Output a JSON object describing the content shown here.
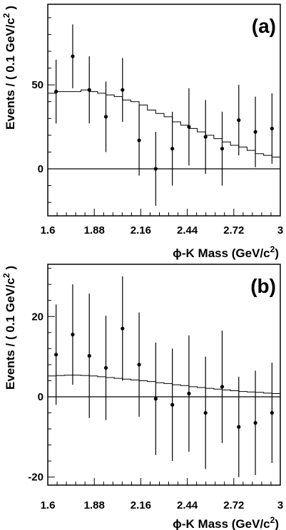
{
  "chart_data": [
    {
      "type": "scatter",
      "panel_label": "(a)",
      "ylabel": "Events / ( 0.1 GeV/c",
      "ylabel_sup": "2",
      "ylabel_close": " )",
      "xlabel": "ϕ-K Mass (GeV/c",
      "xlabel_sup": "2",
      "xlabel_close": ")",
      "xlim": [
        1.6,
        3.0
      ],
      "ylim": [
        -28,
        98
      ],
      "x_ticks": [
        1.6,
        1.88,
        2.16,
        2.44,
        2.72,
        3.0
      ],
      "x_tick_labels": [
        "1.6",
        "1.88",
        "2.16",
        "2.44",
        "2.72",
        "3"
      ],
      "y_ticks": [
        0,
        50
      ],
      "y_tick_labels": [
        "0",
        "50"
      ],
      "zero_line": true,
      "data": {
        "name": "data",
        "x": [
          1.65,
          1.75,
          1.85,
          1.95,
          2.05,
          2.15,
          2.25,
          2.35,
          2.45,
          2.55,
          2.65,
          2.75,
          2.85,
          2.95
        ],
        "y": [
          46,
          67,
          47,
          31,
          47,
          17,
          0,
          12,
          25,
          19,
          12,
          29,
          22,
          24
        ],
        "err_low": [
          19,
          19,
          20,
          21,
          19,
          21,
          22,
          22,
          23,
          22,
          22,
          21,
          21,
          21
        ],
        "err_high": [
          19,
          19,
          20,
          21,
          19,
          21,
          22,
          22,
          23,
          22,
          22,
          21,
          21,
          21
        ]
      },
      "fit": {
        "name": "fit",
        "bin_edges": [
          1.6,
          1.65,
          1.7,
          1.75,
          1.8,
          1.85,
          1.9,
          1.95,
          2.0,
          2.05,
          2.1,
          2.15,
          2.2,
          2.25,
          2.3,
          2.35,
          2.4,
          2.45,
          2.5,
          2.55,
          2.6,
          2.65,
          2.7,
          2.75,
          2.8,
          2.85,
          2.9,
          2.95,
          3.0
        ],
        "values": [
          45,
          46,
          46,
          46,
          47,
          46,
          45,
          44,
          43,
          41,
          40,
          38,
          35,
          33,
          31,
          28,
          26,
          24,
          22,
          20,
          18,
          16,
          14,
          13,
          11,
          9,
          8,
          7
        ]
      }
    },
    {
      "type": "scatter",
      "panel_label": "(b)",
      "ylabel": "Events / ( 0.1 GeV/c",
      "ylabel_sup": "2",
      "ylabel_close": " )",
      "xlabel": "ϕ-K Mass (GeV/c",
      "xlabel_sup": "2",
      "xlabel_close": ")",
      "xlim": [
        1.6,
        3.0
      ],
      "ylim": [
        -22,
        33
      ],
      "x_ticks": [
        1.6,
        1.88,
        2.16,
        2.44,
        2.72,
        3.0
      ],
      "x_tick_labels": [
        "1.6",
        "1.88",
        "2.16",
        "2.44",
        "2.72",
        "3"
      ],
      "y_ticks": [
        -20,
        0,
        20
      ],
      "y_tick_labels": [
        "-20",
        "0",
        "20"
      ],
      "zero_line": true,
      "data": {
        "name": "data",
        "x": [
          1.65,
          1.75,
          1.85,
          1.95,
          2.05,
          2.15,
          2.25,
          2.35,
          2.45,
          2.55,
          2.65,
          2.75,
          2.85,
          2.95
        ],
        "y": [
          10.5,
          15.5,
          10.2,
          7.2,
          17.0,
          8.0,
          -0.5,
          -2.0,
          0.8,
          -4.0,
          2.5,
          -7.5,
          -6.5,
          -4.0
        ],
        "err_low": [
          12.5,
          12.5,
          15.5,
          13.0,
          13.0,
          13.0,
          14.0,
          14.0,
          14.5,
          14.0,
          14.0,
          12.5,
          13.0,
          12.5
        ],
        "err_high": [
          12.5,
          12.5,
          15.5,
          13.0,
          13.0,
          13.0,
          14.0,
          14.0,
          14.5,
          14.0,
          14.0,
          12.5,
          13.0,
          12.5
        ]
      },
      "fit": {
        "name": "fit",
        "bin_edges": [
          1.6,
          1.65,
          1.7,
          1.75,
          1.8,
          1.85,
          1.9,
          1.95,
          2.0,
          2.05,
          2.1,
          2.15,
          2.2,
          2.25,
          2.3,
          2.35,
          2.4,
          2.45,
          2.5,
          2.55,
          2.6,
          2.65,
          2.7,
          2.75,
          2.8,
          2.85,
          2.9,
          2.95,
          3.0
        ],
        "values": [
          5.2,
          5.3,
          5.4,
          5.4,
          5.3,
          5.2,
          5.0,
          4.8,
          4.6,
          4.4,
          4.2,
          4.0,
          3.8,
          3.5,
          3.3,
          3.0,
          2.8,
          2.5,
          2.3,
          2.1,
          1.9,
          1.7,
          1.5,
          1.3,
          1.2,
          1.1,
          0.9,
          0.8
        ]
      }
    }
  ]
}
